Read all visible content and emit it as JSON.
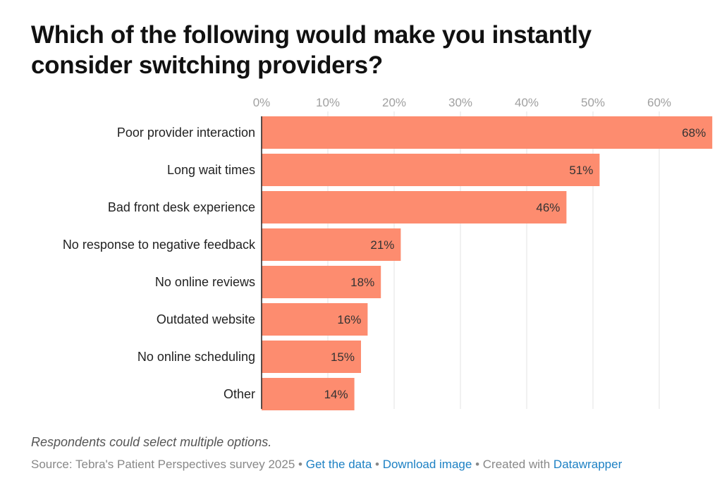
{
  "chart_data": {
    "type": "bar",
    "orientation": "horizontal",
    "title": "Which of the following would make you instantly consider switching providers?",
    "categories": [
      "Poor provider interaction",
      "Long wait times",
      "Bad front desk experience",
      "No response to negative feedback",
      "No online reviews",
      "Outdated website",
      "No online scheduling",
      "Other"
    ],
    "values": [
      68,
      51,
      46,
      21,
      18,
      16,
      15,
      14
    ],
    "data_labels": [
      "68%",
      "51%",
      "46%",
      "21%",
      "18%",
      "16%",
      "15%",
      "14%"
    ],
    "x_ticks": [
      "0%",
      "10%",
      "20%",
      "30%",
      "40%",
      "50%",
      "60%"
    ],
    "x_tick_values": [
      0,
      10,
      20,
      30,
      40,
      50,
      60
    ],
    "xlim": [
      0,
      68
    ],
    "grid": true,
    "axis_position": "top",
    "bar_color": "#fd8c6f"
  },
  "footer": {
    "note": "Respondents could select multiple options.",
    "source": "Source: Tebra's Patient Perspectives survey 2025",
    "sep": " • ",
    "get_data": "Get the data",
    "download": "Download image",
    "created_with": "Created with",
    "datawrapper": "Datawrapper"
  }
}
